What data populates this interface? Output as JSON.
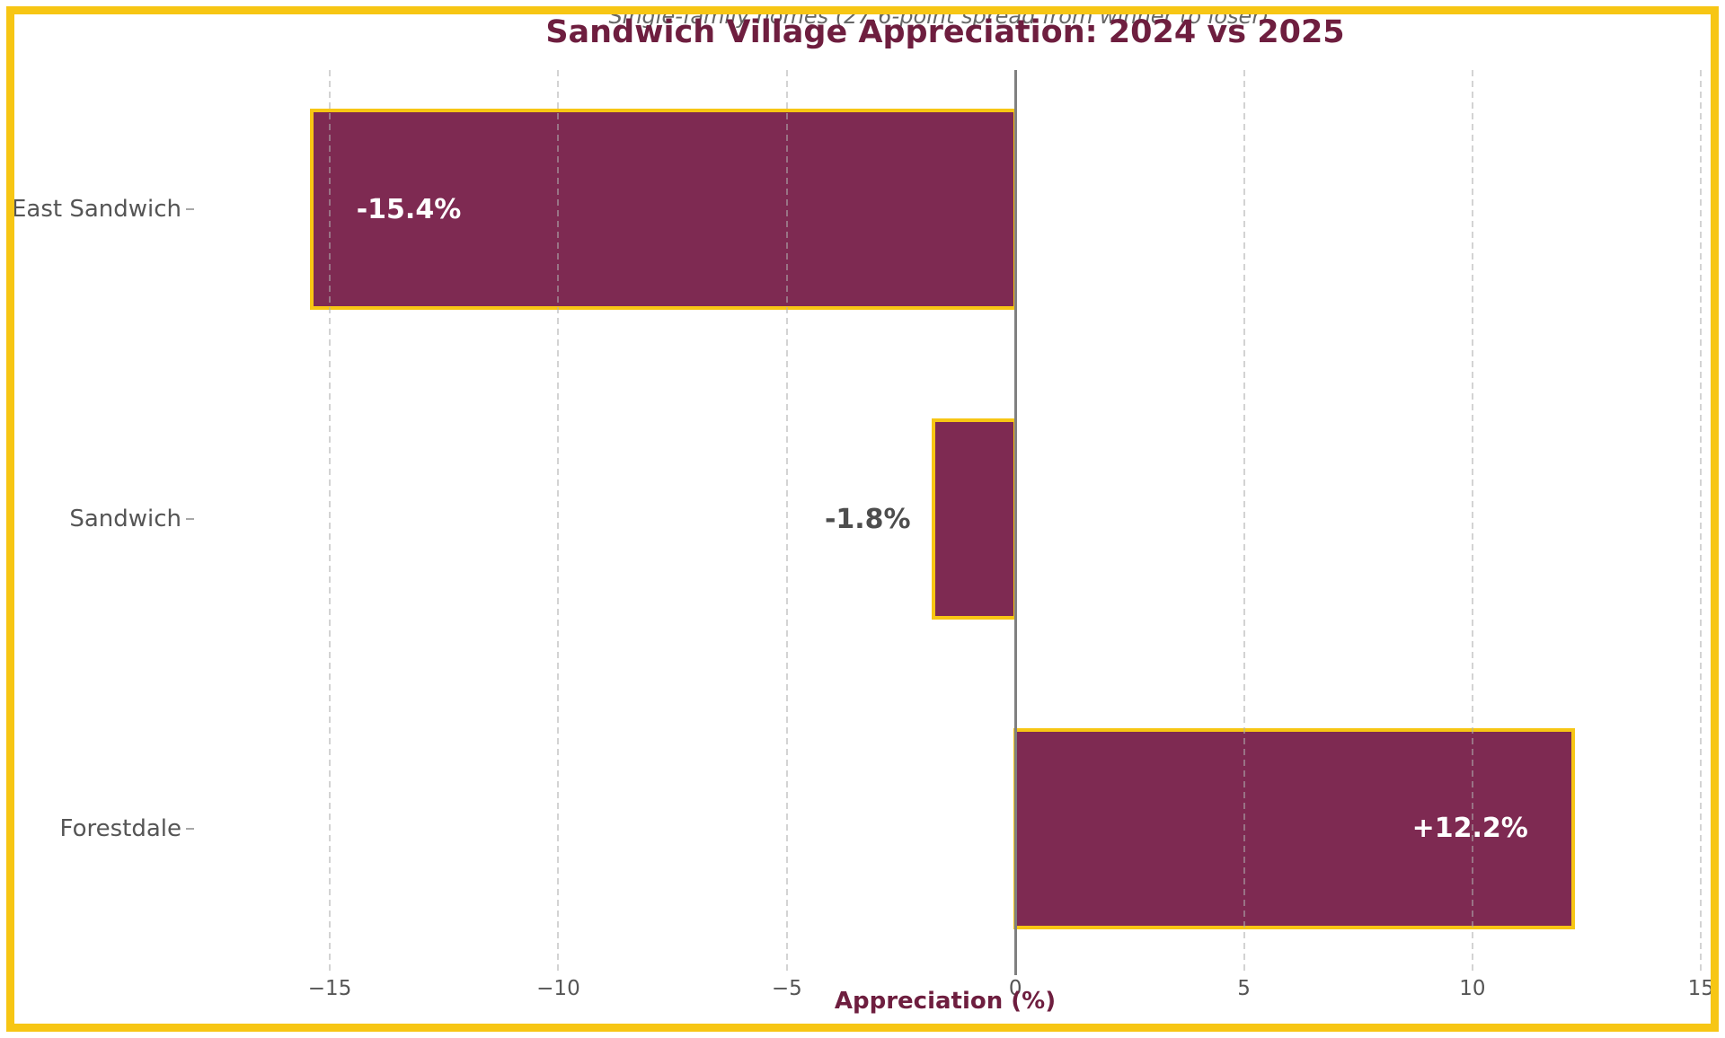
{
  "chart": {
    "title": "Sandwich Village Appreciation: 2024 vs 2025",
    "subtitle": "Single-family homes (27.6-point spread from winner to loser)",
    "xlabel": "Appreciation (%)"
  },
  "colors": {
    "frame": "#F7C614",
    "bar_fill": "#7E2A52",
    "bar_edge": "#F7C614",
    "title_text": "#6E1E3F",
    "axis_label_text": "#6E1E3F",
    "tick_text": "#555555",
    "subtitle_text": "#666666",
    "grid_line": "#D5D5D5",
    "zero_line": "#808080",
    "value_label_inside": "#FFFFFF",
    "value_label_outside": "#4D4D4D",
    "background": "#FFFFFF"
  },
  "chart_data": {
    "type": "bar",
    "orientation": "horizontal",
    "title": "Sandwich Village Appreciation: 2024 vs 2025",
    "subtitle": "Single-family homes (27.6-point spread from winner to loser)",
    "xlabel": "Appreciation (%)",
    "ylabel": "",
    "categories": [
      "East Sandwich",
      "Sandwich",
      "Forestdale"
    ],
    "values": [
      -15.4,
      -1.8,
      12.2
    ],
    "bar_labels": [
      "-15.4%",
      "-1.8%",
      "+12.2%"
    ],
    "xticks": [
      -15,
      -10,
      -5,
      0,
      5,
      10,
      15
    ],
    "xtick_labels": [
      "−15",
      "−10",
      "−5",
      "0",
      "5",
      "10",
      "15"
    ],
    "xlim": [
      -17.95,
      15.25
    ],
    "grid": "vertical-dashed",
    "zero_line": true,
    "legend": null
  }
}
